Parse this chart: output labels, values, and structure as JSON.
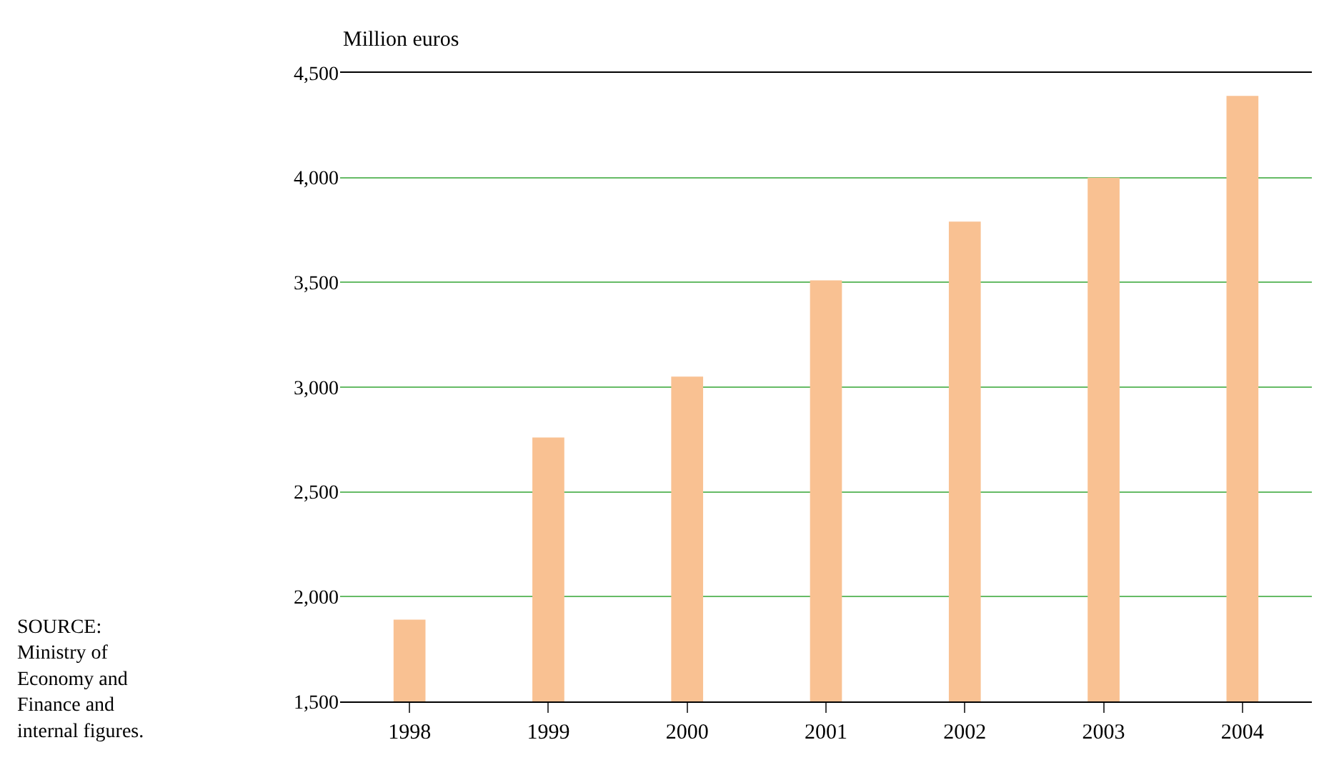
{
  "chart_data": {
    "type": "bar",
    "ylabel": "Million euros",
    "categories": [
      "1998",
      "1999",
      "2000",
      "2001",
      "2002",
      "2003",
      "2004"
    ],
    "values": [
      1890,
      2760,
      3050,
      3510,
      3790,
      4000,
      4390
    ],
    "color": "#f9c192",
    "ylim": [
      1500,
      4500
    ],
    "yticks": [
      {
        "value": 1500,
        "label": "1,500"
      },
      {
        "value": 2000,
        "label": "2,000"
      },
      {
        "value": 2500,
        "label": "2,500"
      },
      {
        "value": 3000,
        "label": "3,000"
      },
      {
        "value": 3500,
        "label": "3,500"
      },
      {
        "value": 4000,
        "label": "4,000"
      },
      {
        "value": 4500,
        "label": "4,500"
      }
    ],
    "grid": "y",
    "legend": false,
    "annotations": [
      "SOURCE:\nMinistry of\nEconomy and\nFinance and\ninternal figures."
    ]
  }
}
